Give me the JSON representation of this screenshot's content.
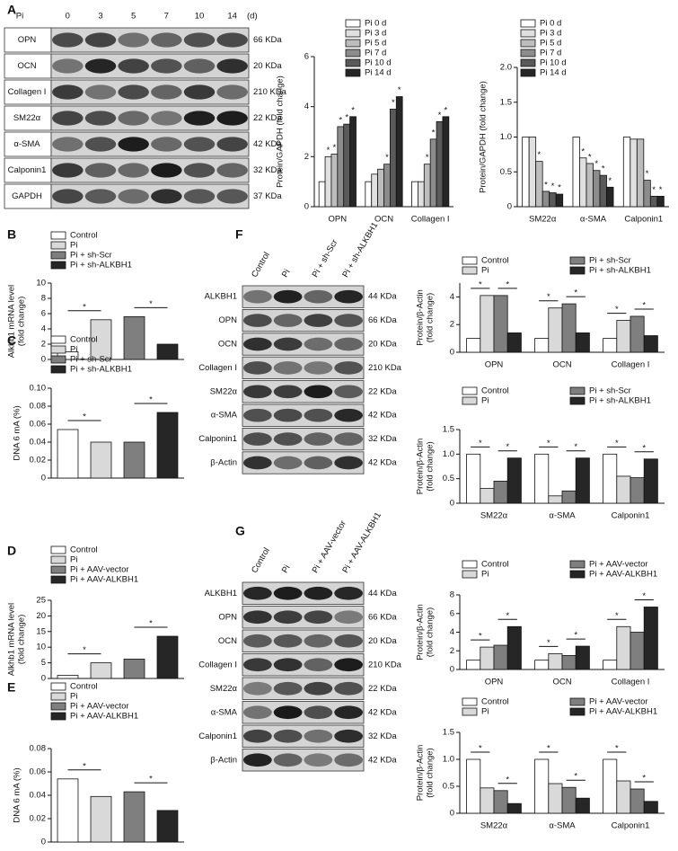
{
  "blots": [
    {
      "panel": "A",
      "treatment": "Pi",
      "lanes": [
        "0",
        "3",
        "5",
        "7",
        "10",
        "14"
      ],
      "unit": "(d)",
      "rows": [
        {
          "protein": "OPN",
          "size": "66 KDa"
        },
        {
          "protein": "OCN",
          "size": "20 KDa"
        },
        {
          "protein": "Collagen I",
          "size": "210 KDa"
        },
        {
          "protein": "SM22α",
          "size": "22 KDa"
        },
        {
          "protein": "α-SMA",
          "size": "42 KDa"
        },
        {
          "protein": "Calponin1",
          "size": "32 KDa"
        },
        {
          "protein": "GAPDH",
          "size": "37 KDa"
        }
      ]
    },
    {
      "panel": "F",
      "lanes": [
        "Control",
        "Pi",
        "Pi + sh-Scr",
        "Pi + sh-ALKBH1"
      ],
      "rows": [
        {
          "protein": "ALKBH1",
          "size": "44 KDa"
        },
        {
          "protein": "OPN",
          "size": "66 KDa"
        },
        {
          "protein": "OCN",
          "size": "20 KDa"
        },
        {
          "protein": "Collagen I",
          "size": "210 KDa"
        },
        {
          "protein": "SM22α",
          "size": "22 KDa"
        },
        {
          "protein": "α-SMA",
          "size": "42 KDa"
        },
        {
          "protein": "Calponin1",
          "size": "32 KDa"
        },
        {
          "protein": "β-Actin",
          "size": "42 KDa"
        }
      ]
    },
    {
      "panel": "G",
      "lanes": [
        "Control",
        "Pi",
        "Pi + AAV-vector",
        "Pi + AAV-ALKBH1"
      ],
      "rows": [
        {
          "protein": "ALKBH1",
          "size": "44 KDa"
        },
        {
          "protein": "OPN",
          "size": "66 KDa"
        },
        {
          "protein": "OCN",
          "size": "20 KDa"
        },
        {
          "protein": "Collagen I",
          "size": "210 KDa"
        },
        {
          "protein": "SM22α",
          "size": "22 KDa"
        },
        {
          "protein": "α-SMA",
          "size": "42 KDa"
        },
        {
          "protein": "Calponin1",
          "size": "32 KDa"
        },
        {
          "protein": "β-Actin",
          "size": "42 KDa"
        }
      ]
    }
  ],
  "chart_data": [
    {
      "type": "grouped_bar",
      "ylabel": [
        "Protein/GAPDH (fold change)"
      ],
      "categories": [
        "OPN",
        "OCN",
        "Collagen I"
      ],
      "ylim": [
        0,
        6
      ],
      "yticks": [
        0,
        2,
        4,
        6
      ],
      "series": [
        {
          "name": "Pi 0 d",
          "color": "#ffffff",
          "values": [
            1,
            1,
            1
          ],
          "value_labels": [
            null,
            null,
            null
          ]
        },
        {
          "name": "Pi 3 d",
          "color": "#e0e0e0",
          "values": [
            2,
            1.3,
            1
          ],
          "value_labels": [
            "*",
            null,
            null
          ]
        },
        {
          "name": "Pi 5 d",
          "color": "#bdbdbd",
          "values": [
            2.1,
            1.5,
            1.7
          ],
          "value_labels": [
            "*",
            null,
            "*"
          ]
        },
        {
          "name": "Pi 7 d",
          "color": "#8c8c8c",
          "values": [
            3.2,
            1.7,
            2.7
          ],
          "value_labels": [
            "*",
            "*",
            "*"
          ]
        },
        {
          "name": "Pi 10 d",
          "color": "#5a5a5a",
          "values": [
            3.3,
            3.9,
            3.4
          ],
          "value_labels": [
            "*",
            "*",
            "*"
          ]
        },
        {
          "name": "Pi 14 d",
          "color": "#262626",
          "values": [
            3.6,
            4.4,
            3.6
          ],
          "value_labels": [
            "*",
            "*",
            "*"
          ]
        }
      ]
    },
    {
      "type": "grouped_bar",
      "ylabel": [
        "Protein/GAPDH (fold change)"
      ],
      "categories": [
        "SM22α",
        "α-SMA",
        "Calponin1"
      ],
      "ylim": [
        0,
        2
      ],
      "yticks": [
        0,
        0.5,
        {
          "value": 1,
          "label": "1.0"
        },
        1.5,
        {
          "value": 2,
          "label": "2.0"
        }
      ],
      "series": [
        {
          "name": "Pi 0 d",
          "color": "#ffffff",
          "values": [
            1,
            1,
            1
          ],
          "value_labels": [
            null,
            null,
            null
          ]
        },
        {
          "name": "Pi 3 d",
          "color": "#e0e0e0",
          "values": [
            1,
            0.7,
            0.97
          ],
          "value_labels": [
            null,
            "*",
            null
          ]
        },
        {
          "name": "Pi 5 d",
          "color": "#bdbdbd",
          "values": [
            0.65,
            0.62,
            0.97
          ],
          "value_labels": [
            "*",
            "*",
            null
          ]
        },
        {
          "name": "Pi 7 d",
          "color": "#8c8c8c",
          "values": [
            0.22,
            0.52,
            0.38
          ],
          "value_labels": [
            "*",
            "*",
            "*"
          ]
        },
        {
          "name": "Pi 10 d",
          "color": "#5a5a5a",
          "values": [
            0.2,
            0.45,
            0.15
          ],
          "value_labels": [
            "*",
            "*",
            "*"
          ]
        },
        {
          "name": "Pi 14 d",
          "color": "#262626",
          "values": [
            0.18,
            0.28,
            0.15
          ],
          "value_labels": [
            "*",
            "*",
            "*"
          ]
        }
      ]
    },
    {
      "type": "bar",
      "panel": "B",
      "ylabel": [
        "Alkhb1 mRNA level",
        "(fold change)"
      ],
      "categories": [
        "Control",
        "Pi",
        "Pi + sh-Scr",
        "Pi + sh-ALKBH1"
      ],
      "colors": [
        "#ffffff",
        "#d9d9d9",
        "#7f7f7f",
        "#262626"
      ],
      "values": [
        1,
        5.2,
        5.6,
        2
      ],
      "ylim": [
        0,
        10
      ],
      "yticks": [
        0,
        2,
        4,
        6,
        8,
        10
      ],
      "annotations": [
        {
          "text": "*",
          "between": [
            "Control",
            "Pi"
          ]
        },
        {
          "text": "*",
          "between": [
            "Pi + sh-Scr",
            "Pi + sh-ALKBH1"
          ]
        }
      ]
    },
    {
      "type": "bar",
      "panel": "C",
      "ylabel": [
        "DNA 6 mA (%)"
      ],
      "categories": [
        "Control",
        "Pi",
        "Pi + sh-Scr",
        "Pi + sh-ALKBH1"
      ],
      "colors": [
        "#ffffff",
        "#d9d9d9",
        "#7f7f7f",
        "#262626"
      ],
      "values": [
        0.054,
        0.04,
        0.04,
        0.073
      ],
      "ylim": [
        0,
        0.1
      ],
      "yticks": [
        0,
        0.02,
        0.04,
        0.06,
        0.08,
        {
          "value": 0.1,
          "label": "0.10"
        }
      ],
      "annotations": [
        {
          "text": "*",
          "between": [
            "Control",
            "Pi"
          ]
        },
        {
          "text": "*",
          "between": [
            "Pi + sh-Scr",
            "Pi + sh-ALKBH1"
          ]
        }
      ]
    },
    {
      "type": "bar",
      "panel": "D",
      "ylabel": [
        "Alkhb1 mRNA level",
        "(fold change)"
      ],
      "categories": [
        "Control",
        "Pi",
        "Pi + AAV-vector",
        "Pi + AAV-ALKBH1"
      ],
      "colors": [
        "#ffffff",
        "#d9d9d9",
        "#7f7f7f",
        "#262626"
      ],
      "values": [
        1,
        5,
        6.2,
        13.5
      ],
      "ylim": [
        0,
        25
      ],
      "yticks": [
        0,
        5,
        10,
        15,
        20,
        25
      ],
      "annotations": [
        {
          "text": "*",
          "between": [
            "Control",
            "Pi"
          ]
        },
        {
          "text": "*",
          "between": [
            "Pi + AAV-vector",
            "Pi + AAV-ALKBH1"
          ]
        }
      ]
    },
    {
      "type": "bar",
      "panel": "E",
      "ylabel": [
        "DNA 6 mA (%)"
      ],
      "categories": [
        "Control",
        "Pi",
        "Pi + AAV-vector",
        "Pi + AAV-ALKBH1"
      ],
      "colors": [
        "#ffffff",
        "#d9d9d9",
        "#7f7f7f",
        "#262626"
      ],
      "values": [
        0.054,
        0.039,
        0.043,
        0.027
      ],
      "ylim": [
        0,
        0.08
      ],
      "yticks": [
        0,
        0.02,
        0.04,
        0.06,
        0.08
      ],
      "annotations": [
        {
          "text": "*",
          "between": [
            "Control",
            "Pi"
          ]
        },
        {
          "text": "*",
          "between": [
            "Pi + AAV-vector",
            "Pi + AAV-ALKBH1"
          ]
        }
      ]
    },
    {
      "type": "grouped_bar",
      "ylabel": [
        "Protein/β-Actin",
        "(fold change)"
      ],
      "categories": [
        "OPN",
        "OCN",
        "Collagen I"
      ],
      "ylim": [
        0,
        5
      ],
      "yticks": [
        0,
        2,
        4
      ],
      "legend_columns": 2,
      "series": [
        {
          "name": "Control",
          "color": "#ffffff",
          "values": [
            1,
            1,
            1
          ]
        },
        {
          "name": "Pi",
          "color": "#d9d9d9",
          "values": [
            4.1,
            3.2,
            2.3
          ]
        },
        {
          "name": "Pi + sh-Scr",
          "color": "#7f7f7f",
          "values": [
            4.1,
            3.5,
            2.6
          ]
        },
        {
          "name": "Pi + sh-ALKBH1",
          "color": "#262626",
          "values": [
            1.4,
            1.4,
            1.2
          ]
        }
      ],
      "annotations": [
        {
          "text": "*",
          "category": "OPN",
          "between": [
            "Control",
            "Pi"
          ]
        },
        {
          "text": "*",
          "category": "OPN",
          "between": [
            "Pi + sh-Scr",
            "Pi + sh-ALKBH1"
          ]
        },
        {
          "text": "*",
          "category": "OCN",
          "between": [
            "Control",
            "Pi"
          ]
        },
        {
          "text": "*",
          "category": "OCN",
          "between": [
            "Pi + sh-Scr",
            "Pi + sh-ALKBH1"
          ]
        },
        {
          "text": "*",
          "category": "Collagen I",
          "between": [
            "Control",
            "Pi"
          ]
        },
        {
          "text": "*",
          "category": "Collagen I",
          "between": [
            "Pi + sh-Scr",
            "Pi + sh-ALKBH1"
          ]
        }
      ]
    },
    {
      "type": "grouped_bar",
      "ylabel": [
        "Protein/β-Actin",
        "(fold change)"
      ],
      "categories": [
        "SM22α",
        "α-SMA",
        "Calponin1"
      ],
      "ylim": [
        0,
        1.5
      ],
      "yticks": [
        0,
        0.5,
        {
          "value": 1,
          "label": "1.0"
        },
        1.5
      ],
      "legend_columns": 2,
      "series": [
        {
          "name": "Control",
          "color": "#ffffff",
          "values": [
            1,
            1,
            1
          ]
        },
        {
          "name": "Pi",
          "color": "#d9d9d9",
          "values": [
            0.3,
            0.15,
            0.55
          ]
        },
        {
          "name": "Pi + sh-Scr",
          "color": "#7f7f7f",
          "values": [
            0.45,
            0.25,
            0.52
          ]
        },
        {
          "name": "Pi + sh-ALKBH1",
          "color": "#262626",
          "values": [
            0.92,
            0.92,
            0.9
          ]
        }
      ],
      "annotations": [
        {
          "text": "*",
          "category": "SM22α",
          "between": [
            "Control",
            "Pi"
          ]
        },
        {
          "text": "*",
          "category": "SM22α",
          "between": [
            "Pi + sh-Scr",
            "Pi + sh-ALKBH1"
          ]
        },
        {
          "text": "*",
          "category": "α-SMA",
          "between": [
            "Control",
            "Pi"
          ]
        },
        {
          "text": "*",
          "category": "α-SMA",
          "between": [
            "Pi + sh-Scr",
            "Pi + sh-ALKBH1"
          ]
        },
        {
          "text": "*",
          "category": "Calponin1",
          "between": [
            "Control",
            "Pi"
          ]
        },
        {
          "text": "*",
          "category": "Calponin1",
          "between": [
            "Pi + sh-Scr",
            "Pi + sh-ALKBH1"
          ]
        }
      ]
    },
    {
      "type": "grouped_bar",
      "ylabel": [
        "Protein/β-Actin",
        "(fold change)"
      ],
      "categories": [
        "OPN",
        "OCN",
        "Collagen I"
      ],
      "ylim": [
        0,
        8
      ],
      "yticks": [
        0,
        2,
        4,
        6,
        8
      ],
      "legend_columns": 2,
      "series": [
        {
          "name": "Control",
          "color": "#ffffff",
          "values": [
            1,
            1,
            1
          ]
        },
        {
          "name": "Pi",
          "color": "#d9d9d9",
          "values": [
            2.4,
            1.7,
            4.6
          ]
        },
        {
          "name": "Pi + AAV-vector",
          "color": "#7f7f7f",
          "values": [
            2.6,
            1.5,
            4
          ]
        },
        {
          "name": "Pi + AAV-ALKBH1",
          "color": "#262626",
          "values": [
            4.6,
            2.5,
            6.7
          ]
        }
      ],
      "annotations": [
        {
          "text": "*",
          "category": "OPN",
          "between": [
            "Control",
            "Pi"
          ]
        },
        {
          "text": "*",
          "category": "OPN",
          "between": [
            "Pi + AAV-vector",
            "Pi + AAV-ALKBH1"
          ]
        },
        {
          "text": "*",
          "category": "OCN",
          "between": [
            "Control",
            "Pi"
          ]
        },
        {
          "text": "*",
          "category": "OCN",
          "between": [
            "Pi + AAV-vector",
            "Pi + AAV-ALKBH1"
          ]
        },
        {
          "text": "*",
          "category": "Collagen I",
          "between": [
            "Control",
            "Pi"
          ]
        },
        {
          "text": "*",
          "category": "Collagen I",
          "between": [
            "Pi + AAV-vector",
            "Pi + AAV-ALKBH1"
          ]
        }
      ]
    },
    {
      "type": "grouped_bar",
      "ylabel": [
        "Protein/β-Actin",
        "(fold change)"
      ],
      "categories": [
        "SM22α",
        "α-SMA",
        "Calponin1"
      ],
      "ylim": [
        0,
        1.5
      ],
      "yticks": [
        0,
        0.5,
        {
          "value": 1,
          "label": "1.0"
        },
        1.5
      ],
      "legend_columns": 2,
      "series": [
        {
          "name": "Control",
          "color": "#ffffff",
          "values": [
            1,
            1,
            1
          ]
        },
        {
          "name": "Pi",
          "color": "#d9d9d9",
          "values": [
            0.47,
            0.55,
            0.6
          ]
        },
        {
          "name": "Pi + AAV-vector",
          "color": "#7f7f7f",
          "values": [
            0.42,
            0.48,
            0.45
          ]
        },
        {
          "name": "Pi + AAV-ALKBH1",
          "color": "#262626",
          "values": [
            0.18,
            0.28,
            0.22
          ]
        }
      ],
      "annotations": [
        {
          "text": "*",
          "category": "SM22α",
          "between": [
            "Control",
            "Pi"
          ]
        },
        {
          "text": "*",
          "category": "SM22α",
          "between": [
            "Pi + AAV-vector",
            "Pi + AAV-ALKBH1"
          ]
        },
        {
          "text": "*",
          "category": "α-SMA",
          "between": [
            "Control",
            "Pi"
          ]
        },
        {
          "text": "*",
          "category": "α-SMA",
          "between": [
            "Pi + AAV-vector",
            "Pi + AAV-ALKBH1"
          ]
        },
        {
          "text": "*",
          "category": "Calponin1",
          "between": [
            "Control",
            "Pi"
          ]
        },
        {
          "text": "*",
          "category": "Calponin1",
          "between": [
            "Pi + AAV-vector",
            "Pi + AAV-ALKBH1"
          ]
        }
      ]
    }
  ]
}
